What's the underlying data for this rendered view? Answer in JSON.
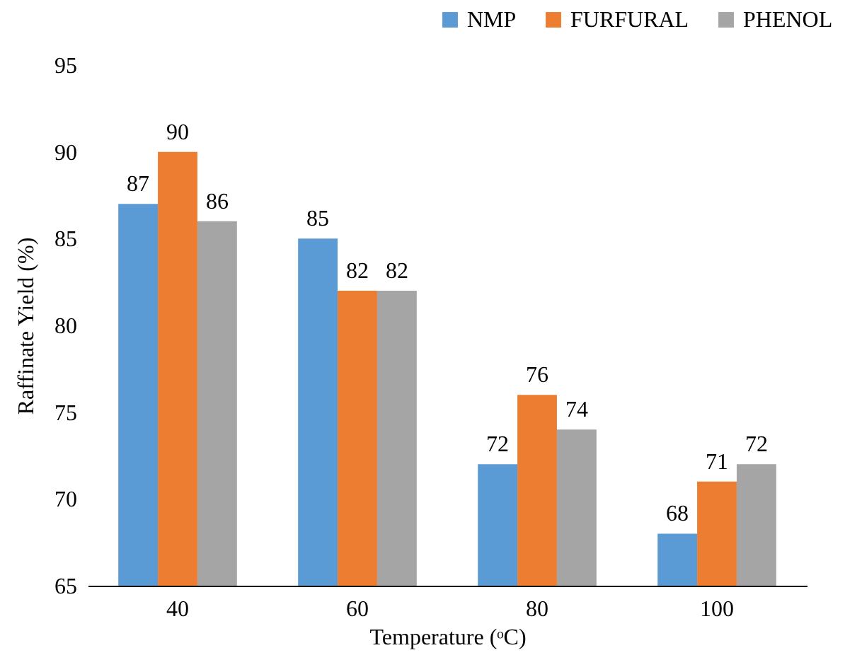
{
  "chart_data": {
    "type": "bar",
    "xlabel": "Temperature (ᵒC)",
    "ylabel": "Raffinate Yield (%)",
    "categories": [
      "40",
      "60",
      "80",
      "100"
    ],
    "series": [
      {
        "name": "NMP",
        "color": "#5b9bd5",
        "values": [
          87,
          85,
          72,
          68
        ]
      },
      {
        "name": "FURFURAL",
        "color": "#ed7d31",
        "values": [
          90,
          82,
          76,
          71
        ]
      },
      {
        "name": "PHENOL",
        "color": "#a5a5a5",
        "values": [
          86,
          82,
          74,
          72
        ]
      }
    ],
    "ylim": [
      65,
      95
    ],
    "yticks": [
      65,
      70,
      75,
      80,
      85,
      90,
      95
    ],
    "grid": false,
    "legend": "top right",
    "data_labels": true
  }
}
